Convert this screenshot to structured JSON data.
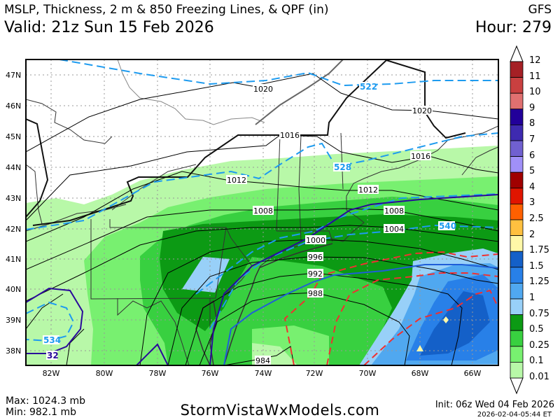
{
  "header": {
    "title": "MSLP, Thickness, 2 m & 850 Freezing Lines, & QPF (in)",
    "valid": "Valid: 21z Sun 15 Feb 2026",
    "model": "GFS",
    "hour": "Hour: 279"
  },
  "map": {
    "lat_labels": [
      "47N",
      "46N",
      "45N",
      "44N",
      "43N",
      "42N",
      "41N",
      "40N",
      "39N",
      "38N"
    ],
    "lon_labels": [
      "82W",
      "80W",
      "78W",
      "76W",
      "74W",
      "72W",
      "70W",
      "68W",
      "66W"
    ],
    "isobar_labels": [
      "1020",
      "1020",
      "1016",
      "1016",
      "1012",
      "1012",
      "1008",
      "1008",
      "1004",
      "1000",
      "996",
      "992",
      "988",
      "984"
    ],
    "thickness_labels": [
      "522",
      "528",
      "534",
      "540"
    ],
    "freezing_label": "32",
    "colors": {
      "isobar": "#000000",
      "thickness": "#1e9bef",
      "freezing_850": "#2a0a9a",
      "freezing_2m": "#1f5ed8",
      "warm_thickness": "#f03030",
      "border": "#222222"
    }
  },
  "colorbar": {
    "labels": [
      "12",
      "11",
      "10",
      "9",
      "8",
      "7",
      "6",
      "5",
      "4",
      "3",
      "2.5",
      "2",
      "1.75",
      "1.5",
      "1.25",
      "1",
      "0.75",
      "0.5",
      "0.25",
      "0.1",
      "0.01"
    ],
    "colors": [
      "#a52025",
      "#c94040",
      "#e07070",
      "#22009a",
      "#3e2ab0",
      "#7060d0",
      "#a090f8",
      "#a00000",
      "#e01500",
      "#ff6000",
      "#ffc040",
      "#fff8a8",
      "#1460c8",
      "#2880e8",
      "#50a8f0",
      "#98d0f8",
      "#0c9a14",
      "#38d040",
      "#78f070",
      "#b8f8a8"
    ]
  },
  "footer": {
    "max": "Max: 1024.3 mb",
    "min": "Min: 982.1 mb",
    "site": "StormVistaWxModels.com",
    "init": "Init: 06z Wed 04 Feb 2026",
    "stamp": "2026-02-04-05:44 ET"
  }
}
